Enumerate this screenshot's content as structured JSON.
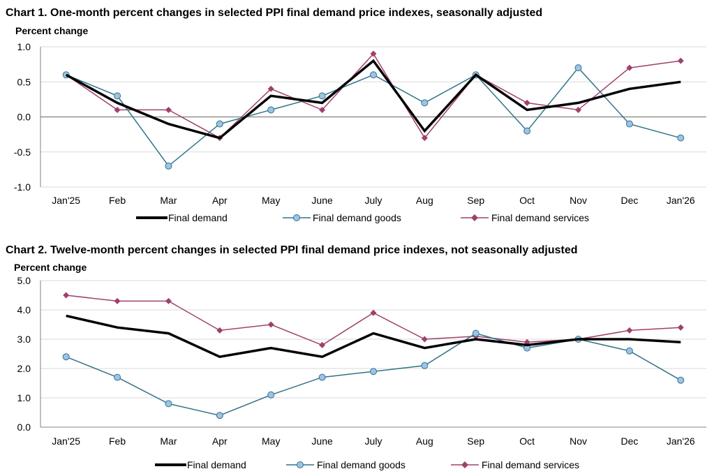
{
  "colors": {
    "final_demand": "#000000",
    "goods_line": "#31738a",
    "goods_marker": "#9dc3e6",
    "services": "#a0406b",
    "grid": "#d9d9d9",
    "axis": "#808080"
  },
  "chart_data": [
    {
      "type": "line",
      "title": "Chart 1. One-month percent changes in selected PPI final demand price indexes, seasonally adjusted",
      "ylabel": "Percent change",
      "xlabel": "",
      "categories": [
        "Jan'25",
        "Feb",
        "Mar",
        "Apr",
        "May",
        "June",
        "July",
        "Aug",
        "Sep",
        "Oct",
        "Nov",
        "Dec",
        "Jan'26"
      ],
      "ylim": [
        -1.0,
        1.0
      ],
      "yticks": [
        1.0,
        0.5,
        0.0,
        -0.5,
        -1.0
      ],
      "ytick_labels": [
        "1.0",
        "0.5",
        "0.0",
        "-0.5",
        "-1.0"
      ],
      "grid": true,
      "series": [
        {
          "name": "Final demand",
          "values": [
            0.6,
            0.2,
            -0.1,
            -0.3,
            0.3,
            0.2,
            0.8,
            -0.2,
            0.6,
            0.1,
            0.2,
            0.4,
            0.5
          ]
        },
        {
          "name": "Final demand goods",
          "values": [
            0.6,
            0.3,
            -0.7,
            -0.1,
            0.1,
            0.3,
            0.6,
            0.2,
            0.6,
            -0.2,
            0.7,
            -0.1,
            -0.3
          ]
        },
        {
          "name": "Final demand services",
          "values": [
            0.6,
            0.1,
            0.1,
            -0.3,
            0.4,
            0.1,
            0.9,
            -0.3,
            0.6,
            0.2,
            0.1,
            0.7,
            0.8
          ]
        }
      ]
    },
    {
      "type": "line",
      "title": "Chart 2. Twelve-month percent changes in selected PPI final demand price indexes, not seasonally adjusted",
      "ylabel": "Percent change",
      "xlabel": "",
      "categories": [
        "Jan'25",
        "Feb",
        "Mar",
        "Apr",
        "May",
        "June",
        "July",
        "Aug",
        "Sep",
        "Oct",
        "Nov",
        "Dec",
        "Jan'26"
      ],
      "ylim": [
        0.0,
        5.0
      ],
      "yticks": [
        5.0,
        4.0,
        3.0,
        2.0,
        1.0,
        0.0
      ],
      "ytick_labels": [
        "5.0",
        "4.0",
        "3.0",
        "2.0",
        "1.0",
        "0.0"
      ],
      "grid": true,
      "series": [
        {
          "name": "Final demand",
          "values": [
            3.8,
            3.4,
            3.2,
            2.4,
            2.7,
            2.4,
            3.2,
            2.7,
            3.0,
            2.8,
            3.0,
            3.0,
            2.9
          ]
        },
        {
          "name": "Final demand goods",
          "values": [
            2.4,
            1.7,
            0.8,
            0.4,
            1.1,
            1.7,
            1.9,
            2.1,
            3.2,
            2.7,
            3.0,
            2.6,
            1.6
          ]
        },
        {
          "name": "Final demand services",
          "values": [
            4.5,
            4.3,
            4.3,
            3.3,
            3.5,
            2.8,
            3.9,
            3.0,
            3.1,
            2.9,
            3.0,
            3.3,
            3.4
          ]
        }
      ]
    }
  ]
}
